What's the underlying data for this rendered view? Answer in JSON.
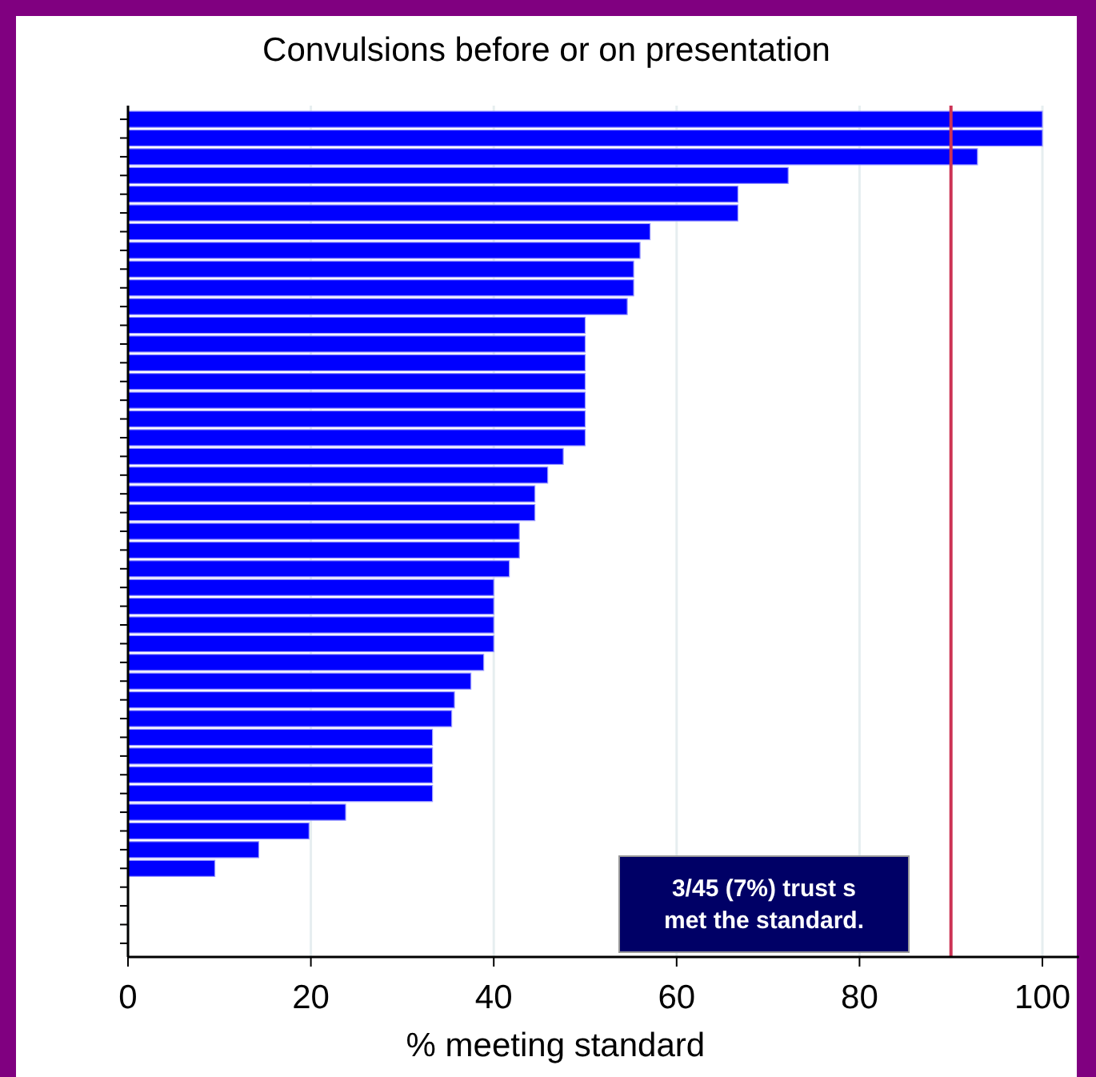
{
  "chart_data": {
    "type": "bar",
    "orientation": "horizontal",
    "title": "Convulsions before or on presentation",
    "xlabel": "% meeting standard",
    "categories": [
      null,
      null,
      null,
      null,
      null,
      null,
      null,
      null,
      null,
      null,
      null,
      null,
      null,
      null,
      null,
      null,
      null,
      null,
      null,
      null,
      null,
      null,
      null,
      null,
      null,
      null,
      null,
      null,
      null,
      null,
      null,
      null,
      null,
      null,
      null,
      null,
      null,
      null,
      null,
      null,
      null,
      null,
      null,
      null,
      null
    ],
    "values": [
      100,
      100,
      92.9,
      72.2,
      66.7,
      66.7,
      57.1,
      56,
      55.3,
      55.3,
      54.6,
      50,
      50,
      50,
      50,
      50,
      50,
      50,
      47.6,
      45.9,
      44.5,
      44.5,
      42.8,
      42.8,
      41.7,
      40,
      40,
      40,
      40,
      38.9,
      37.5,
      35.7,
      35.4,
      33.3,
      33.3,
      33.3,
      33.3,
      23.8,
      19.8,
      14.3,
      9.5,
      0,
      0,
      0,
      0
    ],
    "color": "#0000ff",
    "xlim": [
      0,
      104
    ],
    "xticks": [
      0,
      20,
      40,
      60,
      80,
      100
    ],
    "grid": "x",
    "ref_lines": [
      {
        "axis": "x",
        "value": 90,
        "color": "#cc3355"
      }
    ],
    "annotations": [
      "3/45 (7%) trust s\nmet the standard."
    ]
  }
}
